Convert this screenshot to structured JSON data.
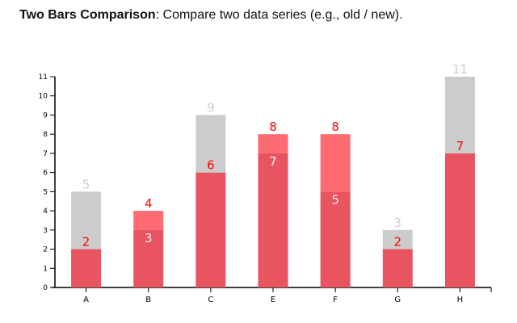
{
  "heading": {
    "bold": "Two Bars Comparison",
    "rest": ": Compare two data series (e.g., old / new)."
  },
  "colors": {
    "old": "#cccccc",
    "new_lower": "#e8545f",
    "new_increase": "#ff6b72",
    "axis": "#000000"
  },
  "chart_data": {
    "type": "bar",
    "title": "Two Bars Comparison",
    "subtitle": ": Compare two data series (e.g., old / new).",
    "categories": [
      "A",
      "B",
      "C",
      "E",
      "F",
      "G",
      "H"
    ],
    "series": [
      {
        "name": "old",
        "values": [
          5,
          3,
          9,
          7,
          5,
          3,
          11
        ]
      },
      {
        "name": "new",
        "values": [
          2,
          4,
          6,
          8,
          8,
          2,
          7
        ]
      }
    ],
    "ylim": [
      0,
      11
    ],
    "yticks": [
      0,
      1,
      2,
      3,
      4,
      5,
      6,
      7,
      8,
      9,
      10,
      11
    ],
    "grid": false,
    "legend": "none"
  }
}
